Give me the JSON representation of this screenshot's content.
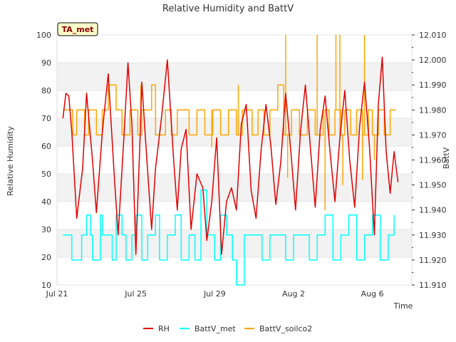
{
  "chart_data": {
    "type": "line",
    "title": "Relative Humidity and BattV",
    "station_label": "TA_met",
    "xlabel": "Time",
    "ylabel_left": "Relative Humidity",
    "ylabel_right": "BattV",
    "x_range": [
      "2023-07-21",
      "2023-08-08"
    ],
    "x_ticks": [
      "Jul 21",
      "Jul 25",
      "Jul 29",
      "Aug 2",
      "Aug 6"
    ],
    "y_left_range": [
      10,
      100
    ],
    "y_left_ticks": [
      "10",
      "20",
      "30",
      "40",
      "50",
      "60",
      "70",
      "80",
      "90",
      "100"
    ],
    "y_right_range": [
      11.91,
      12.01
    ],
    "y_right_ticks": [
      "11.910",
      "11.920",
      "11.930",
      "11.940",
      "11.950",
      "11.960",
      "11.970",
      "11.980",
      "11.990",
      "12.000",
      "12.010"
    ],
    "grid": "horizontal bands",
    "legend_position": "bottom",
    "series": [
      {
        "name": "RH",
        "axis": "left",
        "color": "#e00000",
        "x_days": [
          0.3,
          0.45,
          0.6,
          0.75,
          1.0,
          1.3,
          1.5,
          1.8,
          2.0,
          2.3,
          2.6,
          2.9,
          3.1,
          3.4,
          3.6,
          3.8,
          4.0,
          4.2,
          4.3,
          4.55,
          4.8,
          5.0,
          5.3,
          5.6,
          5.9,
          6.1,
          6.3,
          6.55,
          6.8,
          7.1,
          7.4,
          7.6,
          7.85,
          8.1,
          8.35,
          8.6,
          8.85,
          9.1,
          9.35,
          9.6,
          9.85,
          10.1,
          10.35,
          10.6,
          10.85,
          11.1,
          11.35,
          11.6,
          11.85,
          12.1,
          12.35,
          12.6,
          12.85,
          13.1,
          13.35,
          13.6,
          13.85,
          14.1,
          14.35,
          14.6,
          14.85,
          15.1,
          15.35,
          15.6,
          15.85,
          16.1,
          16.3,
          16.5,
          16.7,
          16.9,
          17.1,
          17.3
        ],
        "values": [
          70,
          79,
          78,
          65,
          34,
          52,
          79,
          55,
          36,
          65,
          86,
          50,
          28,
          64,
          90,
          68,
          21,
          60,
          83,
          56,
          30,
          52,
          70,
          91,
          57,
          37,
          59,
          66,
          30,
          50,
          45,
          26,
          40,
          63,
          21,
          40,
          45,
          37,
          68,
          75,
          44,
          34,
          58,
          75,
          60,
          39,
          54,
          79,
          59,
          37,
          65,
          82,
          60,
          38,
          66,
          78,
          58,
          40,
          63,
          80,
          55,
          38,
          67,
          83,
          60,
          28,
          75,
          92,
          58,
          43,
          58,
          47
        ],
        "interpolation": "linear"
      },
      {
        "name": "BattV_met",
        "axis": "right",
        "color": "#00ffff",
        "x_days": [
          0.3,
          0.7,
          0.75,
          1.2,
          1.25,
          1.5,
          1.7,
          1.8,
          2.2,
          2.3,
          2.8,
          3.0,
          3.3,
          3.5,
          3.8,
          4.0,
          4.3,
          4.6,
          5.0,
          5.2,
          5.6,
          6.0,
          6.3,
          6.7,
          7.0,
          7.3,
          7.6,
          8.0,
          8.3,
          8.6,
          8.9,
          9.1,
          9.5,
          10.0,
          10.4,
          10.8,
          11.2,
          11.6,
          12.0,
          12.4,
          12.8,
          13.2,
          13.6,
          14.0,
          14.4,
          14.8,
          15.2,
          15.6,
          16.0,
          16.4,
          16.8,
          17.1
        ],
        "values": [
          11.93,
          11.93,
          11.92,
          11.92,
          11.93,
          11.938,
          11.93,
          11.92,
          11.938,
          11.93,
          11.92,
          11.938,
          11.93,
          11.92,
          11.93,
          11.938,
          11.92,
          11.93,
          11.938,
          11.92,
          11.93,
          11.938,
          11.92,
          11.93,
          11.92,
          11.948,
          11.93,
          11.92,
          11.938,
          11.93,
          11.92,
          11.91,
          11.93,
          11.93,
          11.92,
          11.93,
          11.93,
          11.92,
          11.93,
          11.93,
          11.92,
          11.93,
          11.938,
          11.92,
          11.93,
          11.938,
          11.92,
          11.93,
          11.938,
          11.92,
          11.93,
          11.938
        ],
        "interpolation": "step"
      },
      {
        "name": "BattV_soilco2",
        "axis": "right",
        "color": "#ffa500",
        "x_days": [
          0.3,
          0.8,
          1.0,
          1.4,
          1.6,
          2.0,
          2.3,
          2.6,
          2.85,
          3.0,
          3.3,
          3.7,
          4.1,
          4.3,
          4.8,
          5.0,
          5.5,
          5.8,
          6.1,
          6.7,
          7.1,
          7.5,
          7.9,
          8.3,
          8.7,
          9.1,
          9.4,
          9.9,
          10.2,
          10.5,
          10.8,
          11.2,
          11.5,
          11.9,
          12.3,
          12.7,
          13.1,
          13.5,
          13.8,
          14.1,
          14.4,
          14.6,
          14.9,
          15.2,
          15.5,
          15.8,
          16.0,
          16.3,
          16.6,
          16.9,
          17.2
        ],
        "values": [
          11.98,
          11.97,
          11.98,
          11.97,
          11.98,
          11.97,
          11.98,
          11.99,
          11.99,
          11.98,
          11.97,
          11.98,
          11.97,
          11.98,
          11.99,
          11.97,
          11.98,
          11.97,
          11.98,
          11.97,
          11.98,
          11.97,
          11.98,
          11.97,
          11.98,
          11.97,
          11.98,
          11.97,
          11.98,
          11.97,
          11.98,
          11.99,
          11.97,
          11.98,
          11.97,
          11.98,
          11.97,
          11.98,
          11.97,
          11.98,
          11.97,
          11.98,
          11.97,
          11.98,
          11.97,
          11.98,
          11.97,
          11.98,
          11.97,
          11.98,
          11.98
        ],
        "spikes": [
          {
            "x_day": 4.25,
            "value": 11.99
          },
          {
            "x_day": 7.85,
            "value": 11.965
          },
          {
            "x_day": 9.2,
            "value": 11.99
          },
          {
            "x_day": 11.6,
            "value": 12.01
          },
          {
            "x_day": 11.7,
            "value": 11.953
          },
          {
            "x_day": 13.2,
            "value": 12.01
          },
          {
            "x_day": 13.6,
            "value": 11.94
          },
          {
            "x_day": 14.15,
            "value": 12.01
          },
          {
            "x_day": 14.35,
            "value": 12.01
          },
          {
            "x_day": 14.5,
            "value": 11.95
          },
          {
            "x_day": 15.5,
            "value": 11.952
          },
          {
            "x_day": 15.6,
            "value": 12.01
          },
          {
            "x_day": 16.1,
            "value": 11.96
          }
        ],
        "interpolation": "step"
      }
    ]
  }
}
